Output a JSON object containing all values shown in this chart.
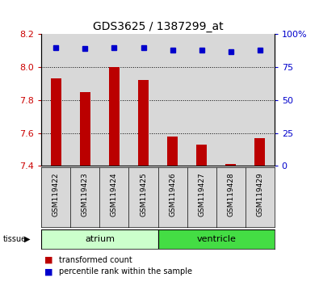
{
  "title": "GDS3625 / 1387299_at",
  "samples": [
    "GSM119422",
    "GSM119423",
    "GSM119424",
    "GSM119425",
    "GSM119426",
    "GSM119427",
    "GSM119428",
    "GSM119429"
  ],
  "red_values": [
    7.93,
    7.85,
    8.0,
    7.92,
    7.58,
    7.53,
    7.41,
    7.57
  ],
  "blue_values": [
    90,
    89,
    90,
    90,
    88,
    88,
    87,
    88
  ],
  "ylim_left": [
    7.4,
    8.2
  ],
  "ylim_right": [
    0,
    100
  ],
  "yticks_left": [
    7.4,
    7.6,
    7.8,
    8.0,
    8.2
  ],
  "yticks_right": [
    0,
    25,
    50,
    75,
    100
  ],
  "bar_color": "#bb0000",
  "square_color": "#0000cc",
  "bar_bottom": 7.4,
  "groups": [
    {
      "label": "atrium",
      "start": 0,
      "end": 3,
      "color": "#ccffcc"
    },
    {
      "label": "ventricle",
      "start": 4,
      "end": 7,
      "color": "#44dd44"
    }
  ],
  "tissue_label": "tissue",
  "legend_items": [
    {
      "label": "transformed count",
      "color": "#bb0000"
    },
    {
      "label": "percentile rank within the sample",
      "color": "#0000cc"
    }
  ],
  "tick_color_left": "#cc0000",
  "tick_color_right": "#0000cc",
  "panel_bg": "#d8d8d8"
}
